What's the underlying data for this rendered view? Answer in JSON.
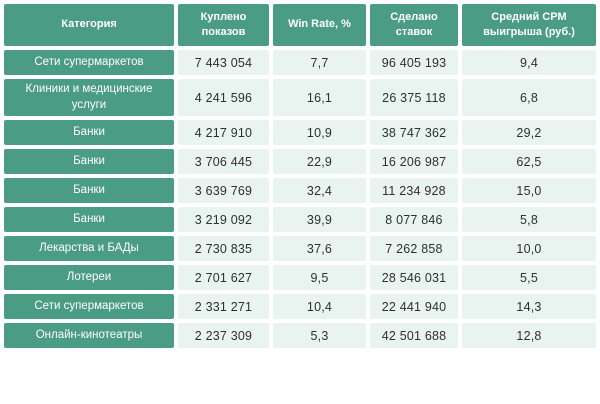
{
  "chart_data": {
    "type": "table",
    "columns": [
      "Категория",
      "Куплено показов",
      "Win Rate, %",
      "Сделано ставок",
      "Средний CPM выигрыша (руб.)"
    ],
    "rows": [
      [
        "Сети супермаркетов",
        "7 443 054",
        "7,7",
        "96 405 193",
        "9,4"
      ],
      [
        "Клиники и медицинские услуги",
        "4 241 596",
        "16,1",
        "26 375 118",
        "6,8"
      ],
      [
        "Банки",
        "4 217 910",
        "10,9",
        "38 747 362",
        "29,2"
      ],
      [
        "Банки",
        "3 706 445",
        "22,9",
        "16 206 987",
        "62,5"
      ],
      [
        "Банки",
        "3 639 769",
        "32,4",
        "11 234 928",
        "15,0"
      ],
      [
        "Банки",
        "3 219 092",
        "39,9",
        "8 077 846",
        "5,8"
      ],
      [
        "Лекарства и БАДы",
        "2 730 835",
        "37,6",
        "7 262 858",
        "10,0"
      ],
      [
        "Лотереи",
        "2 701 627",
        "9,5",
        "28 546 031",
        "5,5"
      ],
      [
        "Сети супермаркетов",
        "2 331 271",
        "10,4",
        "22 441 940",
        "14,3"
      ],
      [
        "Онлайн-кинотеатры",
        "2 237 309",
        "5,3",
        "42 501 688",
        "12,8"
      ]
    ]
  },
  "colors": {
    "header_bg": "#4a9c83",
    "cell_bg": "#e9f4f1",
    "gap": "#ffffff",
    "dark_text": "#2f2f2f",
    "light_text": "#ffffff"
  }
}
